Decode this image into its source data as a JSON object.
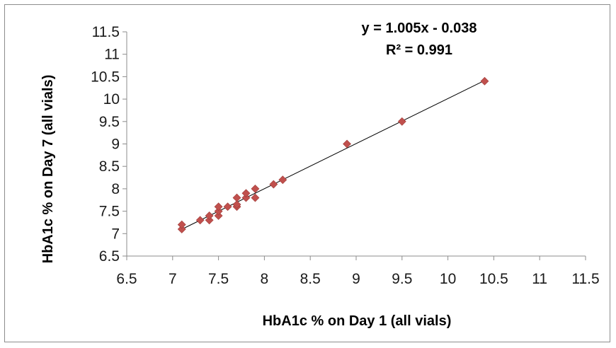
{
  "chart_data": {
    "type": "scatter",
    "xlabel": "HbA1c % on Day 1 (all vials)",
    "ylabel": "HbA1c % on Day 7 (all vials)",
    "xlim": [
      6.5,
      11.5
    ],
    "ylim": [
      6.5,
      11.5
    ],
    "xticks": [
      6.5,
      7,
      7.5,
      8,
      8.5,
      9,
      9.5,
      10,
      10.5,
      11,
      11.5
    ],
    "yticks": [
      6.5,
      7,
      7.5,
      8,
      8.5,
      9,
      9.5,
      10,
      10.5,
      11,
      11.5
    ],
    "grid": false,
    "marker_color": "#c0504d",
    "trendline_color": "#000000",
    "points": [
      {
        "x": 7.1,
        "y": 7.1
      },
      {
        "x": 7.1,
        "y": 7.2
      },
      {
        "x": 7.3,
        "y": 7.3
      },
      {
        "x": 7.4,
        "y": 7.3
      },
      {
        "x": 7.4,
        "y": 7.4
      },
      {
        "x": 7.5,
        "y": 7.4
      },
      {
        "x": 7.5,
        "y": 7.5
      },
      {
        "x": 7.5,
        "y": 7.6
      },
      {
        "x": 7.6,
        "y": 7.6
      },
      {
        "x": 7.7,
        "y": 7.6
      },
      {
        "x": 7.7,
        "y": 7.65
      },
      {
        "x": 7.7,
        "y": 7.8
      },
      {
        "x": 7.8,
        "y": 7.8
      },
      {
        "x": 7.8,
        "y": 7.9
      },
      {
        "x": 7.9,
        "y": 7.8
      },
      {
        "x": 7.9,
        "y": 8.0
      },
      {
        "x": 8.1,
        "y": 8.1
      },
      {
        "x": 8.2,
        "y": 8.2
      },
      {
        "x": 8.9,
        "y": 9.0
      },
      {
        "x": 9.5,
        "y": 9.5
      },
      {
        "x": 10.4,
        "y": 10.4
      }
    ],
    "trendline": {
      "slope": 1.005,
      "intercept": -0.038,
      "x_range": [
        7.1,
        10.4
      ],
      "equation": "y = 1.005x - 0.038",
      "r_squared_label": "R² = 0.991"
    }
  }
}
